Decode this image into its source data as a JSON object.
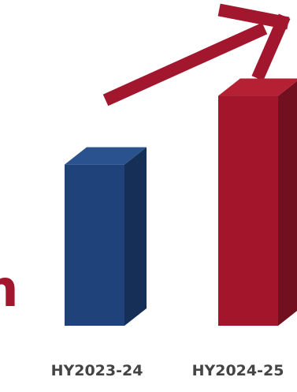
{
  "chart_data": {
    "type": "bar",
    "style": "3d-columns",
    "categories": [
      "HY2023-24",
      "HY2024-25"
    ],
    "values": [
      0.61,
      0.87
    ],
    "value_scale": "relative (no axis printed)",
    "ylim": [
      0,
      1
    ],
    "grid": false,
    "legend": "none",
    "trend_arrow": "upward",
    "edge_glyph": "n"
  },
  "colors": {
    "bar_1_front": "#1e4279",
    "bar_1_side": "#152f57",
    "bar_1_top": "#2a528e",
    "bar_2_front": "#a3152a",
    "bar_2_side": "#73101f",
    "bar_2_top": "#b52034",
    "arrow": "#a3172e",
    "edge_glyph": "#a3172e",
    "label": "#444444"
  }
}
